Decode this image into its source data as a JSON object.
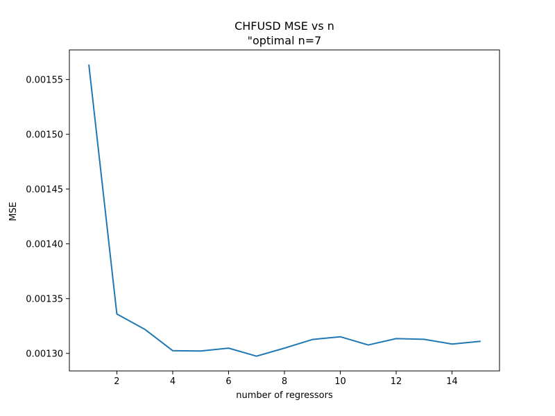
{
  "chart_data": {
    "type": "line",
    "title": "CHFUSD MSE vs n",
    "subtitle": "\"optimal n=7",
    "xlabel": "number of regressors",
    "ylabel": "MSE",
    "xlim": [
      0.3,
      15.7
    ],
    "ylim": [
      0.001284,
      0.001577
    ],
    "x_ticks": [
      2,
      4,
      6,
      8,
      10,
      12,
      14
    ],
    "x_tick_labels": [
      "2",
      "4",
      "6",
      "8",
      "10",
      "12",
      "14"
    ],
    "y_ticks": [
      0.0013,
      0.00135,
      0.0014,
      0.00145,
      0.0015,
      0.00155
    ],
    "y_tick_labels": [
      "0.00130",
      "0.00135",
      "0.00140",
      "0.00145",
      "0.00150",
      "0.00155"
    ],
    "grid": false,
    "series": [
      {
        "color": "#1f77b4",
        "x": [
          1,
          2,
          3,
          4,
          5,
          6,
          7,
          8,
          9,
          10,
          11,
          12,
          13,
          14,
          15
        ],
        "values": [
          0.001563,
          0.001336,
          0.001322,
          0.0013025,
          0.0013022,
          0.0013048,
          0.0012975,
          0.0013048,
          0.0013127,
          0.0013152,
          0.0013077,
          0.0013135,
          0.0013129,
          0.0013085,
          0.001311
        ]
      }
    ]
  }
}
